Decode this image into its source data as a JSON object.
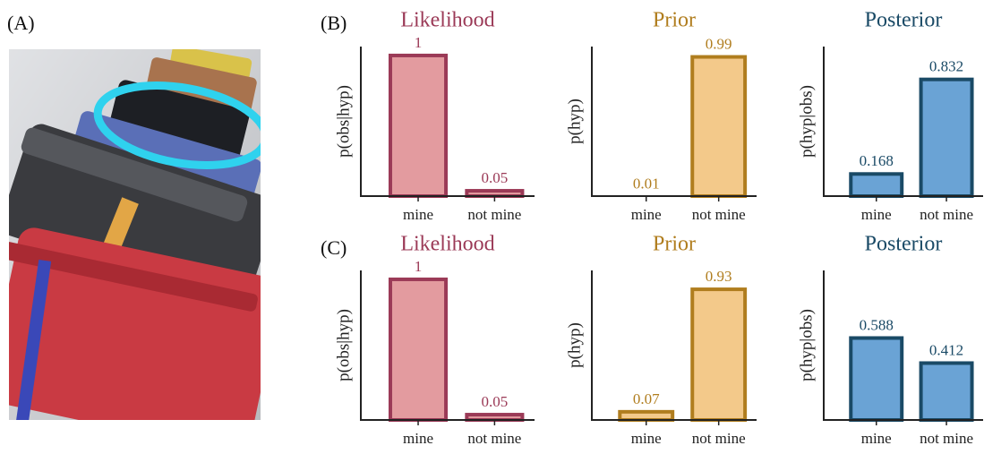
{
  "panel_labels": [
    "(A)",
    "(B)",
    "(C)"
  ],
  "chart_data": [
    {
      "type": "bar",
      "title": "Likelihood",
      "ylabel": "p(obs|hyp)",
      "categories": [
        "mine",
        "not mine"
      ],
      "values": [
        1,
        0.05
      ],
      "color": "#e39b9f",
      "edgecolor": "#9b3a57",
      "ylim": [
        0,
        1.05
      ]
    },
    {
      "type": "bar",
      "title": "Prior",
      "ylabel": "p(hyp)",
      "categories": [
        "mine",
        "not mine"
      ],
      "values": [
        0.01,
        0.99
      ],
      "color": "#f3c98a",
      "edgecolor": "#b07d1e",
      "ylim": [
        0,
        1.05
      ]
    },
    {
      "type": "bar",
      "title": "Posterior",
      "ylabel": "p(hyp|obs)",
      "categories": [
        "mine",
        "not mine"
      ],
      "values": [
        0.168,
        0.832
      ],
      "color": "#6aa3d5",
      "edgecolor": "#1a4a66",
      "ylim": [
        0,
        1.05
      ]
    },
    {
      "type": "bar",
      "title": "Likelihood",
      "ylabel": "p(obs|hyp)",
      "categories": [
        "mine",
        "not mine"
      ],
      "values": [
        1,
        0.05
      ],
      "color": "#e39b9f",
      "edgecolor": "#9b3a57",
      "ylim": [
        0,
        1.05
      ]
    },
    {
      "type": "bar",
      "title": "Prior",
      "ylabel": "p(hyp)",
      "categories": [
        "mine",
        "not mine"
      ],
      "values": [
        0.07,
        0.93
      ],
      "color": "#f3c98a",
      "edgecolor": "#b07d1e",
      "ylim": [
        0,
        1.05
      ]
    },
    {
      "type": "bar",
      "title": "Posterior",
      "ylabel": "p(hyp|obs)",
      "categories": [
        "mine",
        "not mine"
      ],
      "values": [
        0.588,
        0.412
      ],
      "color": "#6aa3d5",
      "edgecolor": "#1a4a66",
      "ylim": [
        0,
        1.05
      ]
    }
  ]
}
